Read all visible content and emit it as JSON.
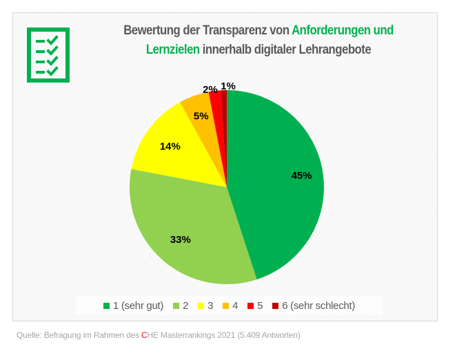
{
  "header": {
    "title_part1": "Bewertung der Transparenz von ",
    "title_highlight1": "Anforderungen und",
    "title_highlight2": "Lernzielen",
    "title_part2": " innerhalb digitaler Lehrangebote",
    "icon": "checklist-icon",
    "accent_color": "#00b050"
  },
  "chart_data": {
    "type": "pie",
    "title": "Bewertung der Transparenz von Anforderungen und Lernzielen innerhalb digitaler Lehrangebote",
    "start_angle": "12 o'clock, clockwise",
    "slices": [
      {
        "label": "1 (sehr gut)",
        "value": 45,
        "display": "45%",
        "color": "#00b050"
      },
      {
        "label": "2",
        "value": 33,
        "display": "33%",
        "color": "#92d050"
      },
      {
        "label": "3",
        "value": 14,
        "display": "14%",
        "color": "#ffff00"
      },
      {
        "label": "4",
        "value": 5,
        "display": "5%",
        "color": "#ffc000"
      },
      {
        "label": "5",
        "value": 2,
        "display": "2%",
        "color": "#ff0000"
      },
      {
        "label": "6 (sehr schlecht)",
        "value": 1,
        "display": "1%",
        "color": "#c00000"
      }
    ],
    "legend_position": "bottom"
  },
  "legend": {
    "items": [
      {
        "label": "1 (sehr gut)",
        "color": "#00b050"
      },
      {
        "label": "2",
        "color": "#92d050"
      },
      {
        "label": "3",
        "color": "#ffff00"
      },
      {
        "label": "4",
        "color": "#ffc000"
      },
      {
        "label": "5",
        "color": "#ff0000"
      },
      {
        "label": "6 (sehr schlecht)",
        "color": "#c00000"
      }
    ]
  },
  "footer": {
    "source_prefix": "Quelle: Befragung im Rahmen des ",
    "che_c": "C",
    "source_suffix": "HE Masterrankings 2021 (5.409 Antworten)"
  }
}
